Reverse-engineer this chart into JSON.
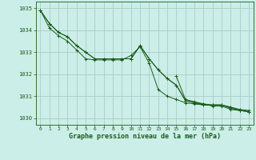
{
  "title": "Graphe pression niveau de la mer (hPa)",
  "background_color": "#cceee8",
  "grid_color": "#aacccc",
  "line_color": "#1a5c1a",
  "xlim": [
    -0.5,
    23.5
  ],
  "ylim": [
    1029.7,
    1035.3
  ],
  "yticks": [
    1030,
    1031,
    1032,
    1033,
    1034,
    1035
  ],
  "xticks": [
    0,
    1,
    2,
    3,
    4,
    5,
    6,
    7,
    8,
    9,
    10,
    11,
    12,
    13,
    14,
    15,
    16,
    17,
    18,
    19,
    20,
    21,
    22,
    23
  ],
  "series": [
    [
      1034.9,
      1034.3,
      1033.9,
      1033.7,
      1033.3,
      1033.0,
      1032.7,
      1032.7,
      1032.7,
      1032.7,
      1032.7,
      1033.3,
      1032.7,
      1032.2,
      1031.8,
      1031.5,
      1030.8,
      1030.7,
      1030.65,
      1030.6,
      1030.6,
      1030.5,
      1030.4,
      1030.35
    ],
    [
      1034.9,
      1034.3,
      1033.9,
      1033.7,
      1033.3,
      1033.0,
      1032.7,
      1032.7,
      1032.7,
      1032.7,
      1032.7,
      1033.3,
      1032.7,
      1032.2,
      1031.8,
      1031.5,
      1030.8,
      1030.7,
      1030.6,
      1030.6,
      1030.6,
      1030.5,
      1030.35,
      1030.3
    ],
    [
      1034.9,
      1034.1,
      1033.75,
      1033.5,
      1033.1,
      1032.7,
      1032.65,
      1032.65,
      1032.65,
      1032.65,
      1032.85,
      1033.25,
      1032.5,
      1031.3,
      1031.0,
      1030.85,
      1030.7,
      1030.65,
      1030.6,
      1030.6,
      1030.6,
      1030.45,
      1030.35,
      1030.3
    ],
    [
      1034.9,
      null,
      null,
      null,
      null,
      null,
      null,
      null,
      null,
      null,
      null,
      null,
      null,
      null,
      null,
      1031.9,
      1030.85,
      1030.75,
      1030.65,
      1030.55,
      1030.55,
      1030.4,
      1030.35,
      1030.3
    ]
  ]
}
